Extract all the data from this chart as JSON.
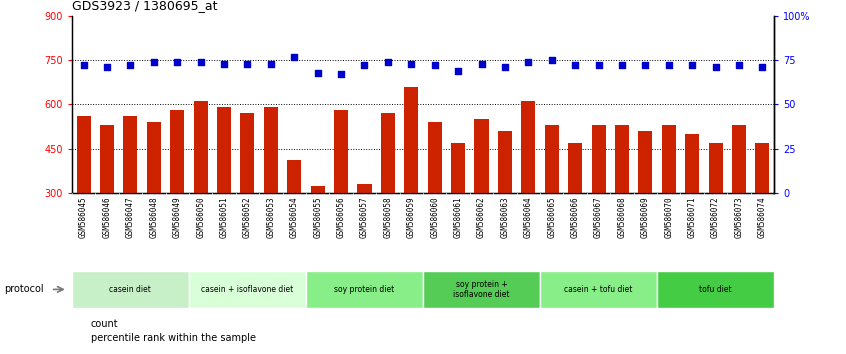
{
  "title": "GDS3923 / 1380695_at",
  "samples": [
    "GSM586045",
    "GSM586046",
    "GSM586047",
    "GSM586048",
    "GSM586049",
    "GSM586050",
    "GSM586051",
    "GSM586052",
    "GSM586053",
    "GSM586054",
    "GSM586055",
    "GSM586056",
    "GSM586057",
    "GSM586058",
    "GSM586059",
    "GSM586060",
    "GSM586061",
    "GSM586062",
    "GSM586063",
    "GSM586064",
    "GSM586065",
    "GSM586066",
    "GSM586067",
    "GSM586068",
    "GSM586069",
    "GSM586070",
    "GSM586071",
    "GSM586072",
    "GSM586073",
    "GSM586074"
  ],
  "counts": [
    560,
    530,
    560,
    540,
    580,
    610,
    590,
    570,
    590,
    410,
    325,
    580,
    330,
    570,
    660,
    540,
    470,
    550,
    510,
    610,
    530,
    470,
    530,
    530,
    510,
    530,
    500,
    470,
    530,
    470
  ],
  "percentiles": [
    72,
    71,
    72,
    74,
    74,
    74,
    73,
    73,
    73,
    77,
    68,
    67,
    72,
    74,
    73,
    72,
    69,
    73,
    71,
    74,
    75,
    72,
    72,
    72,
    72,
    72,
    72,
    71,
    72,
    71
  ],
  "groups": [
    {
      "label": "casein diet",
      "start": 0,
      "end": 5,
      "color": "#c8f0c8"
    },
    {
      "label": "casein + isoflavone diet",
      "start": 5,
      "end": 10,
      "color": "#d8ffd8"
    },
    {
      "label": "soy protein diet",
      "start": 10,
      "end": 15,
      "color": "#88ee88"
    },
    {
      "label": "soy protein +\nisoflavone diet",
      "start": 15,
      "end": 20,
      "color": "#55cc55"
    },
    {
      "label": "casein + tofu diet",
      "start": 20,
      "end": 25,
      "color": "#88ee88"
    },
    {
      "label": "tofu diet",
      "start": 25,
      "end": 30,
      "color": "#44cc44"
    }
  ],
  "bar_color": "#cc2200",
  "dot_color": "#0000cc",
  "ylim_left": [
    300,
    900
  ],
  "ylim_right": [
    0,
    100
  ],
  "yticks_left": [
    300,
    450,
    600,
    750,
    900
  ],
  "yticks_right": [
    0,
    25,
    50,
    75,
    100
  ],
  "ytick_labels_right": [
    "0",
    "25",
    "50",
    "75",
    "100%"
  ],
  "hlines": [
    450,
    600,
    750
  ],
  "bar_width": 0.6,
  "label_bg_color": "#dddddd",
  "spine_color": "#000000"
}
